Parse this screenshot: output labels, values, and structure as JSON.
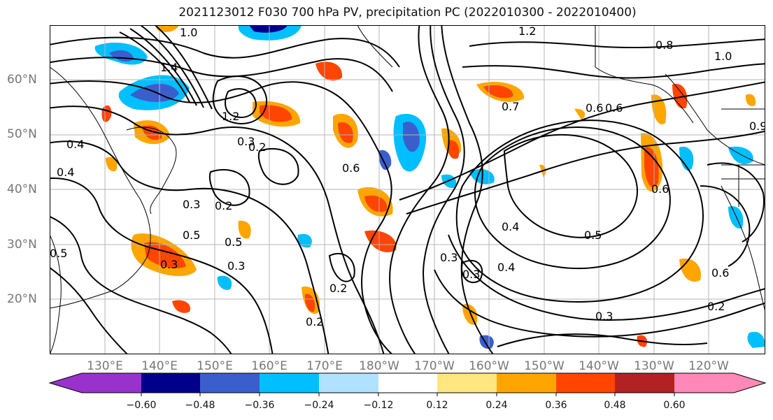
{
  "title": "2021123012 F030 700 hPa PV, precipitation PC (2022010300 - 2022010400)",
  "lat_labels": [
    "60°N",
    "50°N",
    "40°N",
    "30°N",
    "20°N"
  ],
  "lon_labels": [
    "130°E",
    "140°E",
    "150°E",
    "160°E",
    "170°E",
    "180°W",
    "170°W",
    "160°W",
    "150°W",
    "140°W",
    "130°W",
    "120°W"
  ],
  "colorbar": {
    "ticks": [
      "−0.60",
      "−0.48",
      "−0.36",
      "−0.24",
      "−0.12",
      "0.12",
      "0.24",
      "0.36",
      "0.48",
      "0.60"
    ],
    "colors": [
      "#9932cc",
      "#00008b",
      "#3a5fcd",
      "#00bfff",
      "#b0e2ff",
      "#ffffff",
      "#ffe680",
      "#ffa500",
      "#ff4500",
      "#b22222",
      "#ff88b8"
    ]
  },
  "contour_labels": [
    "1.0",
    "1.2",
    "0.8",
    "1.0",
    "1.4",
    "1.2",
    "0.9",
    "0.7",
    "0.6",
    "0.4",
    "0.4",
    "0.3",
    "0.2",
    "0.3",
    "0.2",
    "0.5",
    "0.5",
    "0.3",
    "0.3",
    "0.5",
    "0.4",
    "0.5",
    "0.3",
    "0.4",
    "0.3",
    "0.2",
    "0.2",
    "0.6",
    "0.6",
    "0.6",
    "0.2",
    "0.3",
    "0.6"
  ]
}
